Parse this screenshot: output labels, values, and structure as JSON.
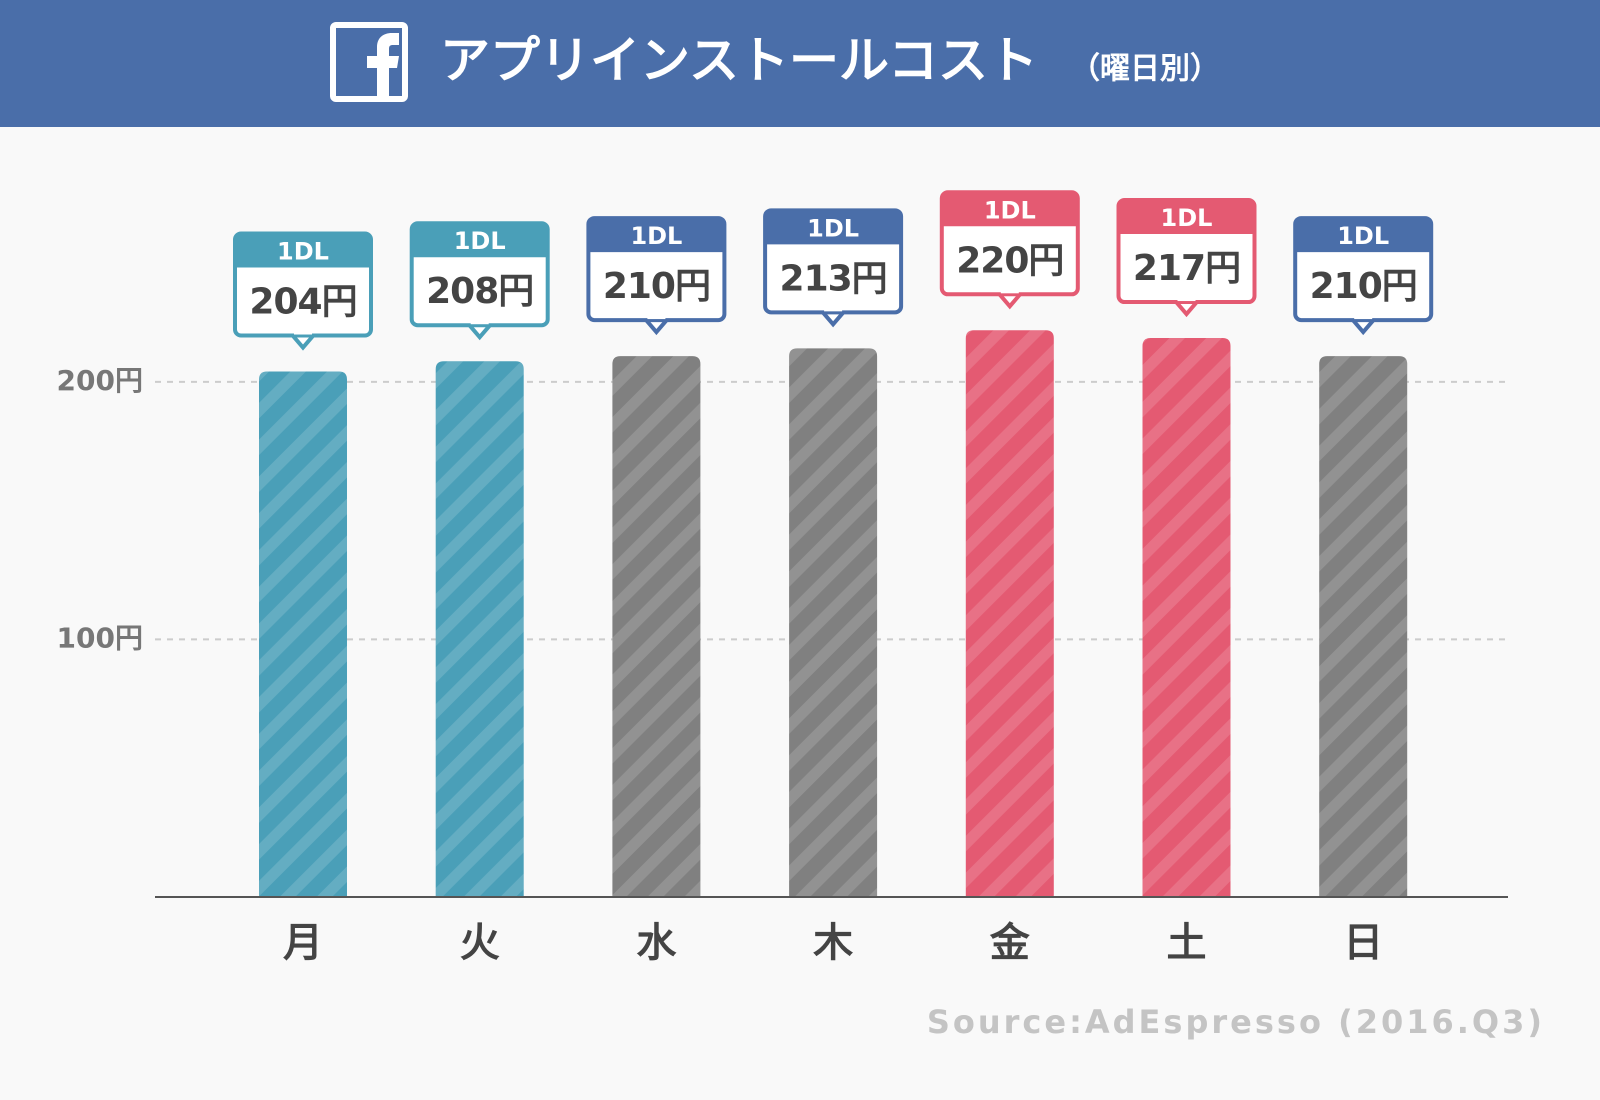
{
  "chart_data": {
    "type": "bar",
    "title": "アプリインストールコスト",
    "subtitle": "（曜日別）",
    "categories": [
      "月",
      "火",
      "水",
      "木",
      "金",
      "土",
      "日"
    ],
    "values": [
      204,
      208,
      210,
      213,
      220,
      217,
      210
    ],
    "value_labels": [
      "204円",
      "208円",
      "210円",
      "213円",
      "220円",
      "217円",
      "210円"
    ],
    "callout_header": "1DL",
    "colors": [
      "#4a9fb8",
      "#4a9fb8",
      "#808080",
      "#808080",
      "#e45a72",
      "#e45a72",
      "#808080"
    ],
    "label_colors": [
      "#4a9fb8",
      "#4a9fb8",
      "#4a6ea9",
      "#4a6ea9",
      "#e45a72",
      "#e45a72",
      "#4a6ea9"
    ],
    "ylim": [
      0,
      290
    ],
    "yticks": [
      {
        "value": 100,
        "label": "100円"
      },
      {
        "value": 200,
        "label": "200円"
      }
    ],
    "grid": true,
    "source": "Source:AdEspresso (2016.Q3)"
  }
}
